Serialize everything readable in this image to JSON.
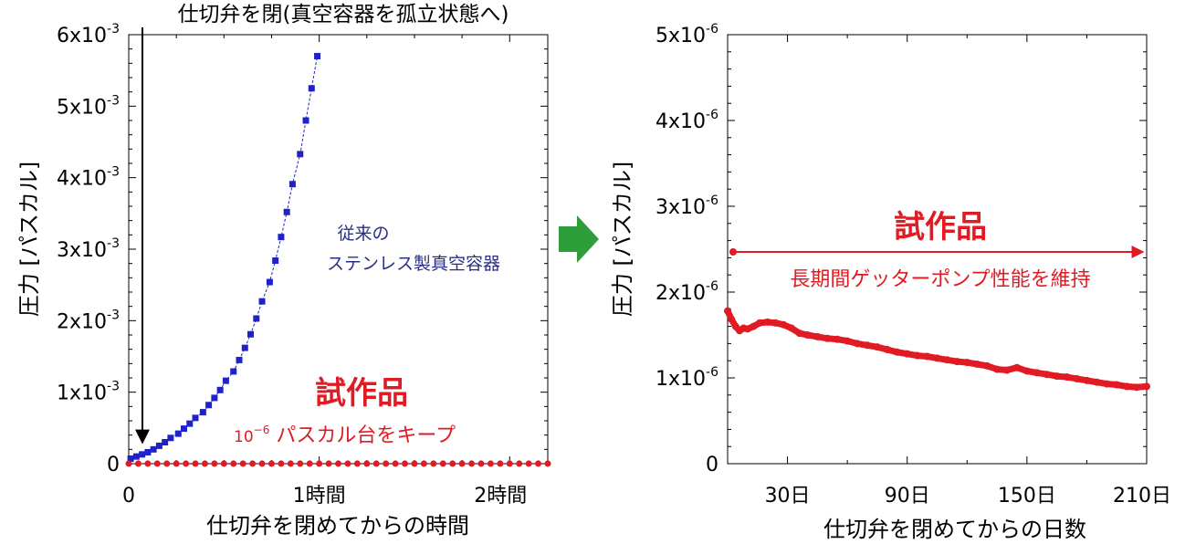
{
  "colors": {
    "conventional": "#1e22c8",
    "conventional_text": "#2a2f86",
    "prototype": "#e01b24",
    "arrow_green": "#2e9e3a",
    "axis": "#000000"
  },
  "chart_data": [
    {
      "type": "scatter",
      "ylabel": "圧力 [パスカル]",
      "xlabel": "仕切弁を閉めてからの時間",
      "x_tick_labels": [
        "0",
        "1時間",
        "2時間"
      ],
      "x_tick_values": [
        0,
        1,
        2
      ],
      "xlim": [
        0,
        2.2
      ],
      "y_tick_labels": [
        {
          "base": "0",
          "exp": ""
        },
        {
          "base": "1x10",
          "exp": "-3"
        },
        {
          "base": "2x10",
          "exp": "-3"
        },
        {
          "base": "3x10",
          "exp": "-3"
        },
        {
          "base": "4x10",
          "exp": "-3"
        },
        {
          "base": "5x10",
          "exp": "-3"
        },
        {
          "base": "6x10",
          "exp": "-3"
        }
      ],
      "y_tick_values": [
        0,
        0.001,
        0.002,
        0.003,
        0.004,
        0.005,
        0.006
      ],
      "ylim": [
        0,
        0.006
      ],
      "grid": false,
      "annotations": {
        "valve_close": "仕切弁を閉(真空容器を孤立状態へ)",
        "conventional_label_line1": "従来の",
        "conventional_label_line2": "ステンレス製真空容器",
        "prototype_title": "試作品",
        "keep_base": "10",
        "keep_exp": "−6",
        "keep_text": " パスカル台をキープ"
      },
      "series": [
        {
          "marker": "square",
          "x": [
            0.01,
            0.04,
            0.07,
            0.1,
            0.13,
            0.16,
            0.19,
            0.22,
            0.26,
            0.29,
            0.32,
            0.35,
            0.39,
            0.42,
            0.45,
            0.48,
            0.51,
            0.55,
            0.58,
            0.61,
            0.64,
            0.67,
            0.7,
            0.74,
            0.77,
            0.8,
            0.83,
            0.86,
            0.9,
            0.93,
            0.96,
            0.99
          ],
          "values": [
            7e-05,
            0.0001,
            0.00013,
            0.00016,
            0.0002,
            0.00025,
            0.0003,
            0.00036,
            0.00042,
            0.00049,
            0.00056,
            0.00064,
            0.00072,
            0.00082,
            0.00092,
            0.00103,
            0.00116,
            0.00129,
            0.00145,
            0.00162,
            0.00181,
            0.00203,
            0.00227,
            0.00254,
            0.00284,
            0.00317,
            0.00352,
            0.00391,
            0.00433,
            0.0048,
            0.00525,
            0.0057
          ]
        },
        {
          "marker": "circle",
          "x": [
            0,
            0.05,
            0.1,
            0.15,
            0.2,
            0.25,
            0.3,
            0.35,
            0.4,
            0.45,
            0.5,
            0.55,
            0.6,
            0.65,
            0.7,
            0.75,
            0.8,
            0.85,
            0.9,
            0.95,
            1.0,
            1.05,
            1.1,
            1.15,
            1.2,
            1.25,
            1.3,
            1.35,
            1.4,
            1.45,
            1.5,
            1.55,
            1.6,
            1.65,
            1.7,
            1.75,
            1.8,
            1.85,
            1.9,
            1.95,
            2.0,
            2.05,
            2.1,
            2.15,
            2.2
          ],
          "values": [
            1e-06,
            1e-06,
            1e-06,
            1e-06,
            1e-06,
            1e-06,
            1e-06,
            1e-06,
            1e-06,
            1e-06,
            1e-06,
            1e-06,
            1e-06,
            1e-06,
            1e-06,
            1e-06,
            1e-06,
            1e-06,
            1e-06,
            1e-06,
            1e-06,
            1e-06,
            1e-06,
            1e-06,
            1e-06,
            1e-06,
            1e-06,
            1e-06,
            1e-06,
            1e-06,
            1e-06,
            1e-06,
            1e-06,
            1e-06,
            1e-06,
            1e-06,
            1e-06,
            1e-06,
            1e-06,
            1e-06,
            1e-06,
            1e-06,
            1e-06,
            1e-06,
            1e-06
          ]
        }
      ]
    },
    {
      "type": "line",
      "ylabel": "圧力 [パスカル]",
      "xlabel": "仕切弁を閉めてからの日数",
      "x_tick_labels": [
        "30日",
        "90日",
        "150日",
        "210日"
      ],
      "x_tick_values": [
        30,
        90,
        150,
        210
      ],
      "xlim": [
        0,
        210
      ],
      "y_tick_labels": [
        {
          "base": "0",
          "exp": ""
        },
        {
          "base": "1x10",
          "exp": "-6"
        },
        {
          "base": "2x10",
          "exp": "-6"
        },
        {
          "base": "3x10",
          "exp": "-6"
        },
        {
          "base": "4x10",
          "exp": "-6"
        },
        {
          "base": "5x10",
          "exp": "-6"
        }
      ],
      "y_tick_values": [
        0,
        1e-06,
        2e-06,
        3e-06,
        4e-06,
        5e-06
      ],
      "ylim": [
        0,
        5e-06
      ],
      "grid": false,
      "annotations": {
        "prototype_title": "試作品",
        "maintain_text": "長期間ゲッターポンプ性能を維持"
      },
      "series": [
        {
          "marker": "circle",
          "x": [
            0,
            2,
            4,
            6,
            8,
            10,
            13,
            16,
            20,
            24,
            28,
            32,
            36,
            40,
            45,
            50,
            55,
            60,
            65,
            70,
            75,
            80,
            85,
            90,
            95,
            100,
            105,
            110,
            115,
            120,
            125,
            130,
            135,
            140,
            145,
            150,
            155,
            160,
            165,
            170,
            175,
            180,
            185,
            190,
            195,
            200,
            205,
            210
          ],
          "values": [
            1.78e-06,
            1.68e-06,
            1.6e-06,
            1.55e-06,
            1.58e-06,
            1.57e-06,
            1.6e-06,
            1.64e-06,
            1.65e-06,
            1.64e-06,
            1.62e-06,
            1.58e-06,
            1.52e-06,
            1.5e-06,
            1.48e-06,
            1.46e-06,
            1.45e-06,
            1.43e-06,
            1.4e-06,
            1.38e-06,
            1.36e-06,
            1.33e-06,
            1.3e-06,
            1.28e-06,
            1.26e-06,
            1.25e-06,
            1.23e-06,
            1.21e-06,
            1.19e-06,
            1.18e-06,
            1.16e-06,
            1.14e-06,
            1.1e-06,
            1.09e-06,
            1.12e-06,
            1.08e-06,
            1.06e-06,
            1.04e-06,
            1.02e-06,
            1.01e-06,
            9.9e-07,
            9.7e-07,
            9.5e-07,
            9.3e-07,
            9.2e-07,
            9e-07,
            8.9e-07,
            9e-07
          ]
        }
      ]
    }
  ]
}
